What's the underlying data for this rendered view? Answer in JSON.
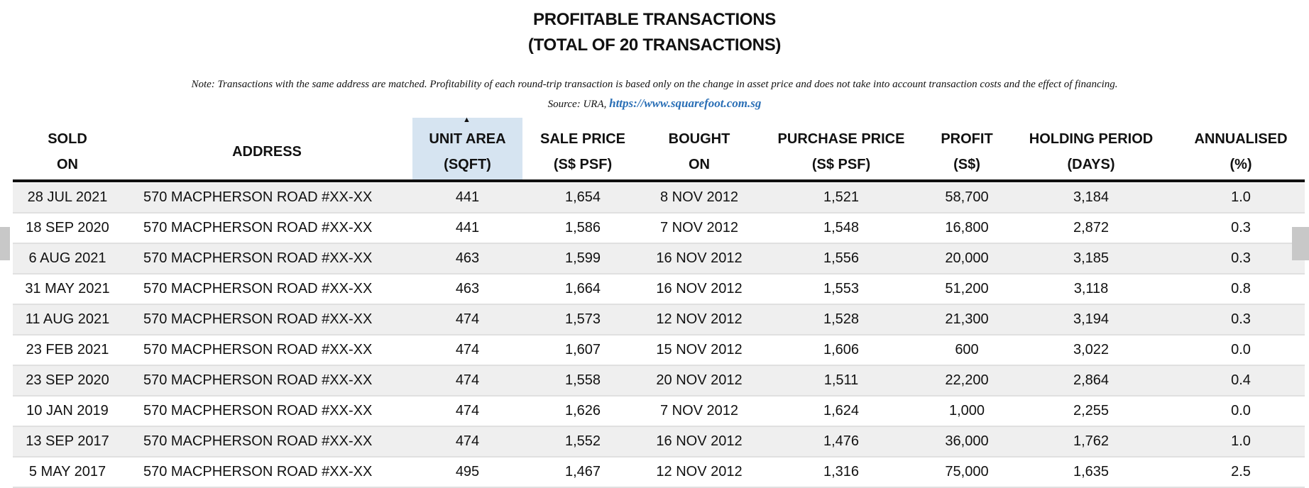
{
  "title": {
    "line1": "PROFITABLE TRANSACTIONS",
    "line2": "(TOTAL OF 20 TRANSACTIONS)"
  },
  "note": {
    "text": "Note: Transactions with the same address are matched. Profitability of each round-trip transaction is based only on the change in asset price and does not take into account transaction costs and the effect of financing.",
    "source_prefix": "Source: URA, ",
    "source_link": "https://www.squarefoot.com.sg"
  },
  "sort_indicator": "▲",
  "headers": [
    {
      "l1": "SOLD",
      "l2": "ON"
    },
    {
      "l1": "ADDRESS",
      "l2": ""
    },
    {
      "l1": "UNIT AREA",
      "l2": "(SQFT)"
    },
    {
      "l1": "SALE PRICE",
      "l2": "(S$ PSF)"
    },
    {
      "l1": "BOUGHT",
      "l2": "ON"
    },
    {
      "l1": "PURCHASE PRICE",
      "l2": "(S$ PSF)"
    },
    {
      "l1": "PROFIT",
      "l2": "(S$)"
    },
    {
      "l1": "HOLDING PERIOD",
      "l2": "(DAYS)"
    },
    {
      "l1": "ANNUALISED",
      "l2": "(%)"
    }
  ],
  "rows": [
    [
      "28 JUL 2021",
      "570 MACPHERSON ROAD #XX-XX",
      "441",
      "1,654",
      "8 NOV 2012",
      "1,521",
      "58,700",
      "3,184",
      "1.0"
    ],
    [
      "18 SEP 2020",
      "570 MACPHERSON ROAD #XX-XX",
      "441",
      "1,586",
      "7 NOV 2012",
      "1,548",
      "16,800",
      "2,872",
      "0.3"
    ],
    [
      "6 AUG 2021",
      "570 MACPHERSON ROAD #XX-XX",
      "463",
      "1,599",
      "16 NOV 2012",
      "1,556",
      "20,000",
      "3,185",
      "0.3"
    ],
    [
      "31 MAY 2021",
      "570 MACPHERSON ROAD #XX-XX",
      "463",
      "1,664",
      "16 NOV 2012",
      "1,553",
      "51,200",
      "3,118",
      "0.8"
    ],
    [
      "11 AUG 2021",
      "570 MACPHERSON ROAD #XX-XX",
      "474",
      "1,573",
      "12 NOV 2012",
      "1,528",
      "21,300",
      "3,194",
      "0.3"
    ],
    [
      "23 FEB 2021",
      "570 MACPHERSON ROAD #XX-XX",
      "474",
      "1,607",
      "15 NOV 2012",
      "1,606",
      "600",
      "3,022",
      "0.0"
    ],
    [
      "23 SEP 2020",
      "570 MACPHERSON ROAD #XX-XX",
      "474",
      "1,558",
      "20 NOV 2012",
      "1,511",
      "22,200",
      "2,864",
      "0.4"
    ],
    [
      "10 JAN 2019",
      "570 MACPHERSON ROAD #XX-XX",
      "474",
      "1,626",
      "7 NOV 2012",
      "1,624",
      "1,000",
      "2,255",
      "0.0"
    ],
    [
      "13 SEP 2017",
      "570 MACPHERSON ROAD #XX-XX",
      "474",
      "1,552",
      "16 NOV 2012",
      "1,476",
      "36,000",
      "1,762",
      "1.0"
    ],
    [
      "5 MAY 2017",
      "570 MACPHERSON ROAD #XX-XX",
      "495",
      "1,467",
      "12 NOV 2012",
      "1,316",
      "75,000",
      "1,635",
      "2.5"
    ]
  ]
}
